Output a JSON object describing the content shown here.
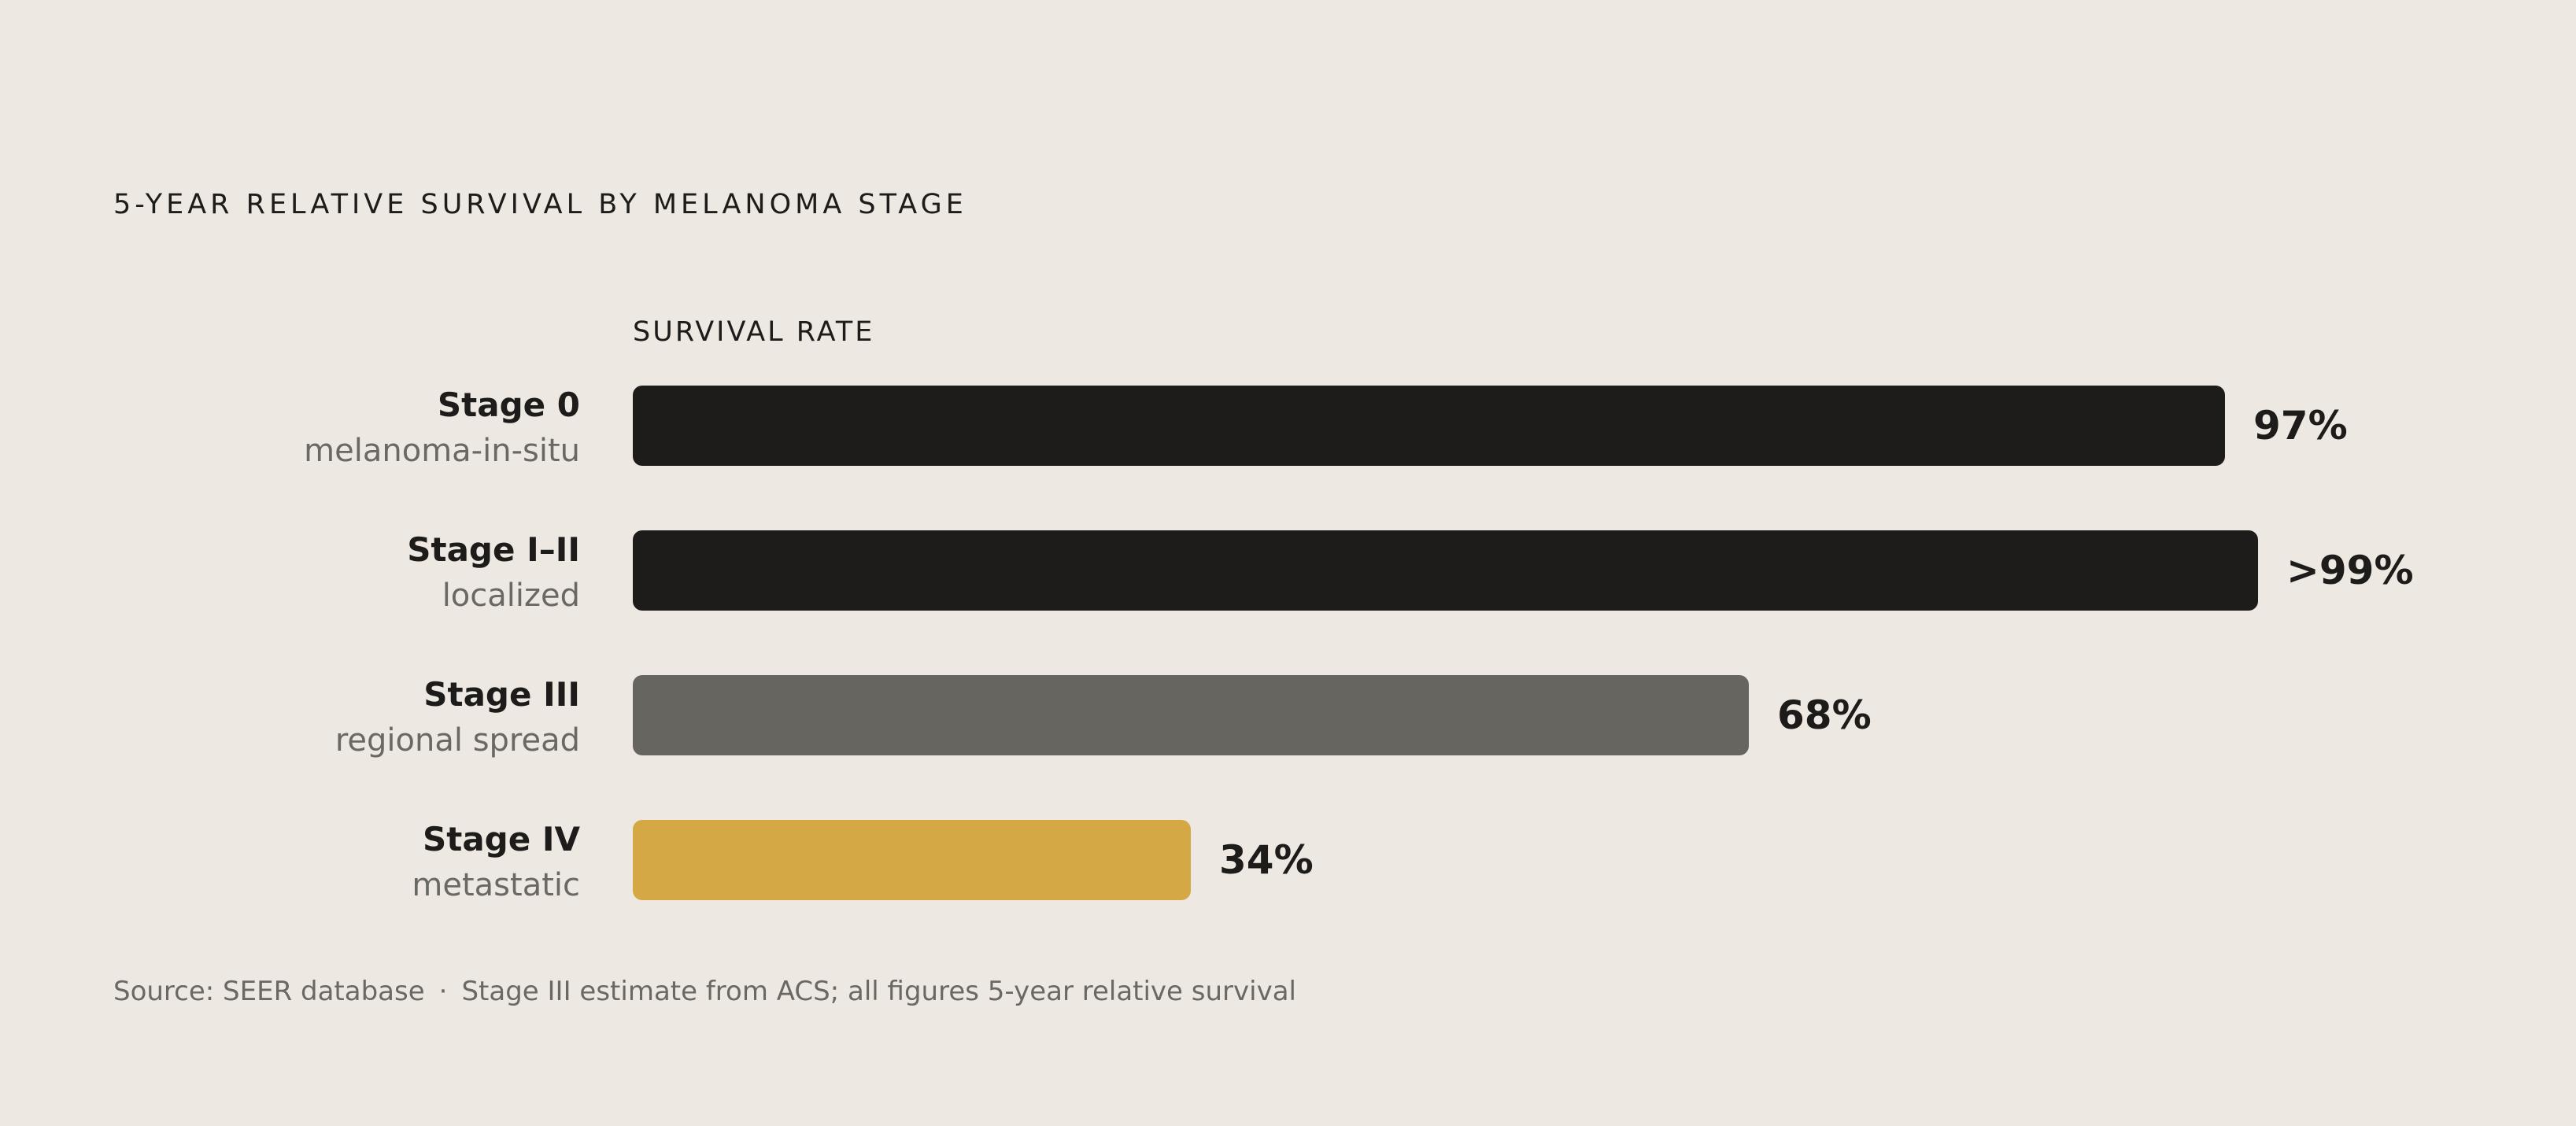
{
  "chart_data": {
    "type": "bar",
    "orientation": "horizontal",
    "title": "5-YEAR RELATIVE SURVIVAL BY MELANOMA STAGE",
    "xlabel": "SURVIVAL RATE",
    "xlim": [
      0,
      100
    ],
    "categories": [
      "Stage 0",
      "Stage I–II",
      "Stage III",
      "Stage IV"
    ],
    "subtitles": [
      "melanoma-in-situ",
      "localized",
      "regional spread",
      "metastatic"
    ],
    "values": [
      97,
      99,
      68,
      34
    ],
    "value_labels": [
      "97%",
      ">99%",
      "68%",
      "34%"
    ],
    "colors": [
      "#1D1C1A",
      "#1D1C1A",
      "#666560",
      "#D4A845"
    ],
    "grid": false,
    "legend": "none"
  },
  "footnote": {
    "source": "Source: SEER database",
    "separator": "·",
    "note": "Stage III estimate from ACS; all figures 5-year relative survival"
  }
}
